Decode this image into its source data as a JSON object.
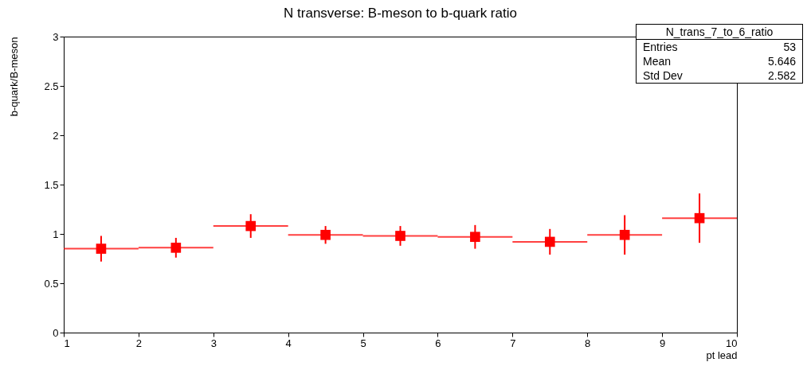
{
  "chart_data": {
    "type": "scatter",
    "title": "N transverse: B-meson to b-quark ratio",
    "xlabel": "pt lead",
    "ylabel": "b-quark/B-meson",
    "x": [
      1.5,
      2.5,
      3.5,
      4.5,
      5.5,
      6.5,
      7.5,
      8.5,
      9.5
    ],
    "series": [
      {
        "color": "#ff0000",
        "values": [
          0.85,
          0.86,
          1.08,
          0.99,
          0.98,
          0.97,
          0.92,
          0.99,
          1.16
        ],
        "errors": [
          0.13,
          0.1,
          0.12,
          0.09,
          0.1,
          0.12,
          0.13,
          0.2,
          0.25
        ],
        "xerrors": [
          0.5,
          0.5,
          0.5,
          0.5,
          0.5,
          0.5,
          0.5,
          0.5,
          0.5
        ]
      }
    ],
    "xlim": [
      1,
      10
    ],
    "xticks": [
      1,
      2,
      3,
      4,
      5,
      6,
      7,
      8,
      9,
      10
    ],
    "ylim": [
      0,
      3
    ],
    "yticks": [
      0,
      0.5,
      1,
      1.5,
      2,
      2.5,
      3
    ],
    "marker": "square",
    "grid": false,
    "annotations": [
      "N_trans_7_to_6_ratio",
      "Entries",
      "53",
      "Mean",
      "5.646",
      "Std Dev",
      "2.582"
    ]
  }
}
